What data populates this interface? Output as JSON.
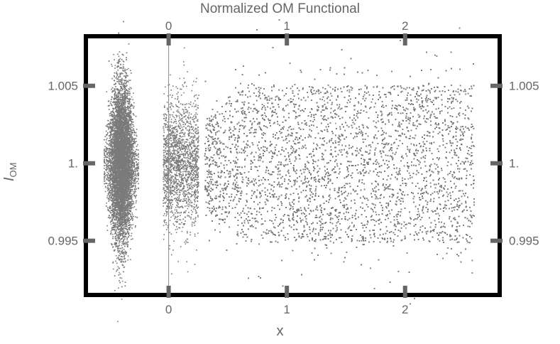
{
  "chart_data": {
    "type": "scatter",
    "title": "Normalized OM Functional",
    "xlabel": "x",
    "ylabel_main": "I",
    "ylabel_sub": "OM",
    "xlim": [
      -0.7,
      2.8
    ],
    "ylim": [
      0.9915,
      1.0082
    ],
    "x_ticks": [
      {
        "value": 0,
        "label": "0"
      },
      {
        "value": 1,
        "label": "1"
      },
      {
        "value": 2,
        "label": "2"
      }
    ],
    "y_ticks": [
      {
        "value": 0.995,
        "label": "0.995"
      },
      {
        "value": 1.0,
        "label": "1."
      },
      {
        "value": 1.005,
        "label": "1.005"
      }
    ],
    "grid": false,
    "point_color": "#7a7a7a",
    "frame_color": "#000000",
    "tick_color": "#666666",
    "vertical_rule_x": 0,
    "clusters": [
      {
        "x_range": [
          -0.53,
          -0.28
        ],
        "y_center": 1.0,
        "y_half_width": 0.0068
      },
      {
        "x_range": [
          -0.05,
          0.25
        ],
        "y_center": 1.0,
        "y_half_width": 0.003
      },
      {
        "x_range": [
          0.3,
          2.58
        ],
        "y_center": 1.0,
        "y_half_width": 0.0062
      }
    ]
  }
}
